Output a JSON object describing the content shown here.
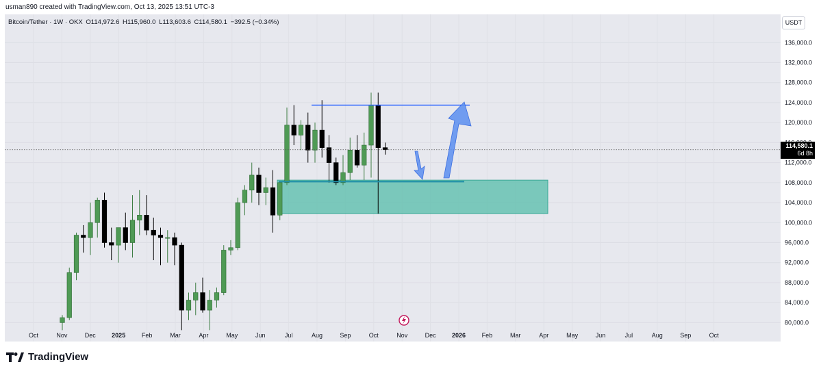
{
  "header": {
    "caption": "usman890 created with TradingView.com, Oct 13, 2025 13:51 UTC-3"
  },
  "symbol": {
    "name": "Bitcoin/Tether · 1W · OKX",
    "open": "O114,972.6",
    "high": "H115,960.0",
    "low": "L113,603.6",
    "close": "C114,580.1",
    "change": "−392.5 (−0.34%)"
  },
  "currency_button": "USDT",
  "last_price": {
    "price": "114,580.1",
    "countdown": "6d 8h"
  },
  "footer": {
    "brand": "TradingView"
  },
  "colors": {
    "up": "#4f9a55",
    "down": "#000000",
    "zone": "#5fbfae",
    "resistance": "#2962ff",
    "support": "#1f8fa8",
    "arrow": "#5b8ef0"
  },
  "chart_data": {
    "type": "candlestick",
    "y_ticks": [
      "136,000.0",
      "132,000.0",
      "128,000.0",
      "124,000.0",
      "120,000.0",
      "116,000.0",
      "112,000.0",
      "108,000.0",
      "104,000.0",
      "100,000.0",
      "96,000.0",
      "92,000.0",
      "88,000.0",
      "84,000.0",
      "80,000.0"
    ],
    "x_ticks": [
      "Oct",
      "Nov",
      "Dec",
      "2025",
      "Feb",
      "Mar",
      "Apr",
      "May",
      "Jun",
      "Jul",
      "Aug",
      "Sep",
      "Oct",
      "Nov",
      "Dec",
      "2026",
      "Feb",
      "Mar",
      "Apr",
      "May",
      "Jun",
      "Jul",
      "Aug",
      "Sep",
      "Oct"
    ],
    "ylim": [
      78000,
      138500
    ],
    "resistance_level": 123500,
    "support_level": 108200,
    "zone": {
      "top": 108500,
      "bottom": 101800
    },
    "candles": [
      {
        "o": 80000,
        "h": 81500,
        "l": 78500,
        "c": 81000
      },
      {
        "o": 81000,
        "h": 91000,
        "l": 80500,
        "c": 90000
      },
      {
        "o": 90000,
        "h": 98000,
        "l": 88500,
        "c": 97500
      },
      {
        "o": 97500,
        "h": 99500,
        "l": 94000,
        "c": 97000
      },
      {
        "o": 97000,
        "h": 104000,
        "l": 93500,
        "c": 100000
      },
      {
        "o": 100000,
        "h": 105000,
        "l": 97000,
        "c": 104500
      },
      {
        "o": 104500,
        "h": 106000,
        "l": 95000,
        "c": 96000
      },
      {
        "o": 96000,
        "h": 99000,
        "l": 92500,
        "c": 95500
      },
      {
        "o": 95500,
        "h": 98500,
        "l": 92000,
        "c": 99000
      },
      {
        "o": 99000,
        "h": 102000,
        "l": 94500,
        "c": 96000
      },
      {
        "o": 96000,
        "h": 105500,
        "l": 93000,
        "c": 100500
      },
      {
        "o": 100500,
        "h": 106500,
        "l": 97500,
        "c": 101500
      },
      {
        "o": 101500,
        "h": 105500,
        "l": 97500,
        "c": 98500
      },
      {
        "o": 98500,
        "h": 101000,
        "l": 92500,
        "c": 97500
      },
      {
        "o": 97500,
        "h": 99000,
        "l": 91500,
        "c": 97000
      },
      {
        "o": 97000,
        "h": 98500,
        "l": 92000,
        "c": 97000
      },
      {
        "o": 97000,
        "h": 98000,
        "l": 91500,
        "c": 95500
      },
      {
        "o": 95500,
        "h": 96000,
        "l": 78500,
        "c": 82500
      },
      {
        "o": 82500,
        "h": 86000,
        "l": 80500,
        "c": 84500
      },
      {
        "o": 84500,
        "h": 88000,
        "l": 81500,
        "c": 86000
      },
      {
        "o": 86000,
        "h": 89000,
        "l": 82000,
        "c": 82500
      },
      {
        "o": 82500,
        "h": 86500,
        "l": 78500,
        "c": 84500
      },
      {
        "o": 84500,
        "h": 87000,
        "l": 83000,
        "c": 86000
      },
      {
        "o": 86000,
        "h": 95500,
        "l": 85500,
        "c": 94500
      },
      {
        "o": 94500,
        "h": 96500,
        "l": 93500,
        "c": 95000
      },
      {
        "o": 95000,
        "h": 105000,
        "l": 94500,
        "c": 104000
      },
      {
        "o": 104000,
        "h": 107500,
        "l": 101500,
        "c": 106500
      },
      {
        "o": 106500,
        "h": 112000,
        "l": 104000,
        "c": 109500
      },
      {
        "o": 109500,
        "h": 111000,
        "l": 103500,
        "c": 106000
      },
      {
        "o": 106000,
        "h": 109000,
        "l": 103500,
        "c": 107000
      },
      {
        "o": 107000,
        "h": 110500,
        "l": 98000,
        "c": 101500
      },
      {
        "o": 101500,
        "h": 108000,
        "l": 100500,
        "c": 108000
      },
      {
        "o": 108000,
        "h": 123000,
        "l": 107500,
        "c": 119500
      },
      {
        "o": 119500,
        "h": 123500,
        "l": 115500,
        "c": 117500
      },
      {
        "o": 117500,
        "h": 120500,
        "l": 114500,
        "c": 119500
      },
      {
        "o": 119500,
        "h": 122000,
        "l": 112000,
        "c": 114500
      },
      {
        "o": 114500,
        "h": 120000,
        "l": 112000,
        "c": 118500
      },
      {
        "o": 118500,
        "h": 124500,
        "l": 113000,
        "c": 115000
      },
      {
        "o": 115000,
        "h": 117500,
        "l": 108000,
        "c": 112000
      },
      {
        "o": 112000,
        "h": 113000,
        "l": 107500,
        "c": 108000
      },
      {
        "o": 108000,
        "h": 113500,
        "l": 107500,
        "c": 110000
      },
      {
        "o": 110000,
        "h": 117000,
        "l": 108500,
        "c": 114500
      },
      {
        "o": 114500,
        "h": 117500,
        "l": 111000,
        "c": 111500
      },
      {
        "o": 111500,
        "h": 118000,
        "l": 108500,
        "c": 115500
      },
      {
        "o": 115500,
        "h": 126000,
        "l": 109000,
        "c": 123500
      },
      {
        "o": 123500,
        "h": 126000,
        "l": 101800,
        "c": 115000
      },
      {
        "o": 115000,
        "h": 116000,
        "l": 113600,
        "c": 114580
      }
    ],
    "annotations": [
      {
        "type": "arrow",
        "direction": "down"
      },
      {
        "type": "arrow",
        "direction": "up"
      }
    ]
  }
}
